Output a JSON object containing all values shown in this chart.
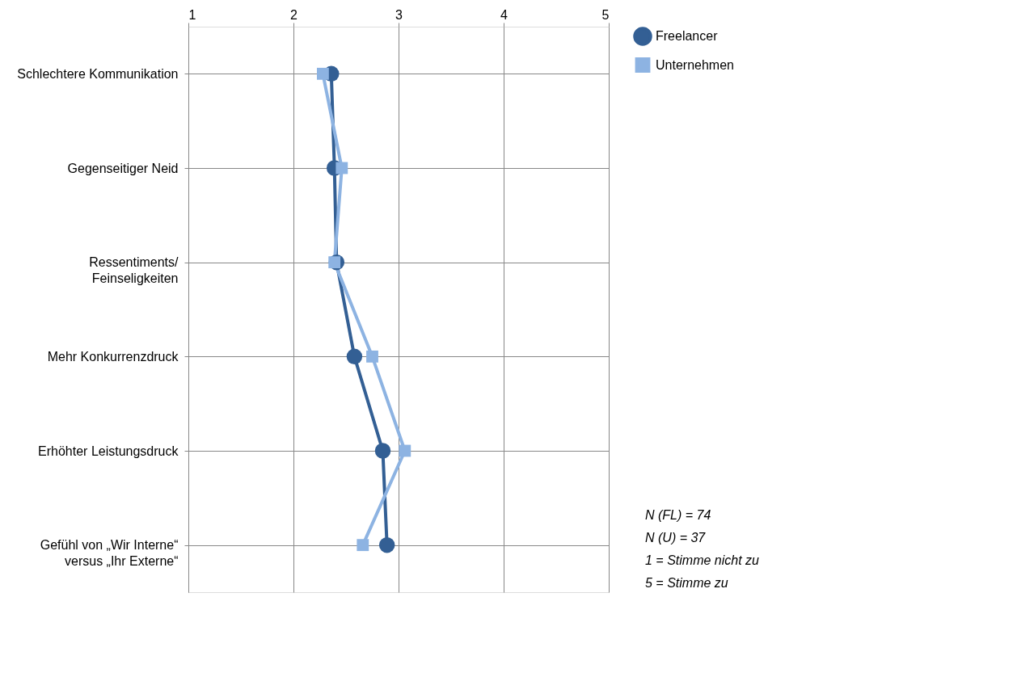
{
  "chart_data": {
    "type": "line",
    "orientation": "horizontal",
    "categories": [
      "Schlechtere Kommunikation",
      "Gegenseitiger Neid",
      "Ressentiments/ Feinseligkeiten",
      "Mehr Konkurrenzdruck",
      "Erhöhter Leistungsdruck",
      "Gefühl von „Wir Interne“ versus „Ihr Externe“"
    ],
    "series": [
      {
        "name": "Freelancer",
        "color": "#335f94",
        "marker": "circle",
        "values": [
          2.36,
          2.39,
          2.41,
          2.58,
          2.85,
          2.89
        ]
      },
      {
        "name": "Unternehmen",
        "color": "#8db3e2",
        "marker": "square",
        "values": [
          2.28,
          2.46,
          2.39,
          2.75,
          3.06,
          2.66
        ]
      }
    ],
    "xlim": [
      1,
      5
    ],
    "xticks": [
      1,
      2,
      3,
      4,
      5
    ],
    "grid": true,
    "legend": "right",
    "line_style": "solid",
    "annotations": [
      "N (FL) = 74",
      "N (U) = 37",
      "1 = Stimme nicht zu",
      "5 = Stimme zu"
    ]
  }
}
